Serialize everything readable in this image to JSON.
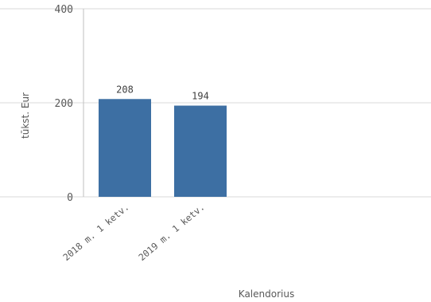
{
  "chart_data": {
    "type": "bar",
    "categories": [
      "2018 m. 1 ketv.",
      "2019 m. 1 ketv."
    ],
    "values": [
      208,
      194
    ],
    "value_labels": [
      "208",
      "194"
    ],
    "ylabel": "tūkst. Eur",
    "xlabel": "Kalendorius",
    "ylim": [
      0,
      400
    ],
    "yticks": [
      0,
      200,
      400
    ],
    "grid": true,
    "colors": {
      "bar": "#3d6fa3",
      "grid": "#d9d9d9",
      "axis": "#bfbfbf"
    }
  }
}
